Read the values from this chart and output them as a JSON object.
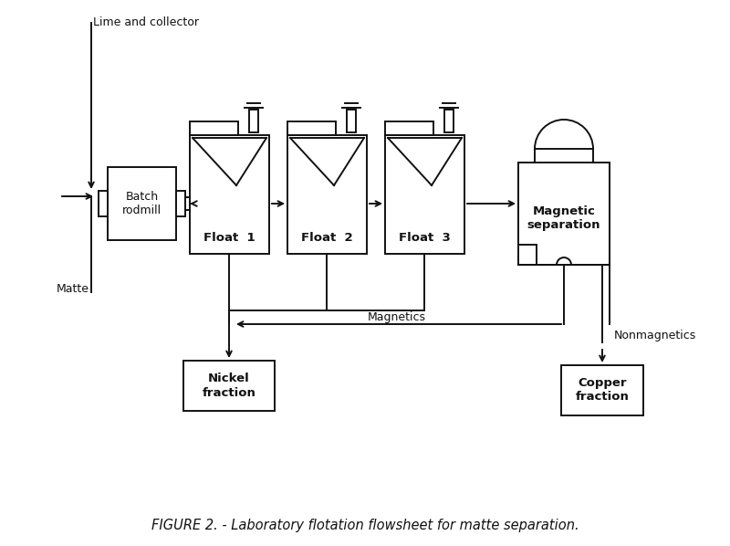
{
  "title": "FIGURE 2. - Laboratory flotation flowsheet for matte separation.",
  "title_fontsize": 10.5,
  "background_color": "#ffffff",
  "line_color": "#111111",
  "fig_width": 8.0,
  "fig_height": 5.98,
  "labels": {
    "lime_collector": "Lime and collector",
    "matte": "Matte",
    "float1": "Float  1",
    "float2": "Float  2",
    "float3": "Float  3",
    "batch_rodmill": "Batch\nrodmill",
    "magnetic_sep": "Magnetic\nseparation",
    "magnetics": "Magnetics",
    "nonmagnetics": "Nonmagnetics",
    "nickel_fraction": "Nickel\nfraction",
    "copper_fraction": "Copper\nfraction"
  }
}
